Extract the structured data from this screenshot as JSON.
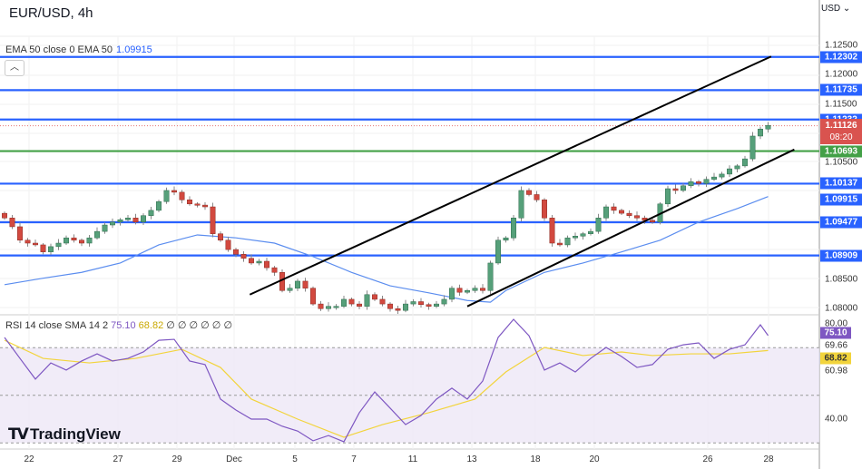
{
  "header": {
    "title": "EUR/USD, 4h",
    "currency": "USD",
    "collapse_icon": "chevron-up-icon"
  },
  "ema_legend": {
    "label": "EMA 50 close 0 EMA 50",
    "value": "1.09915"
  },
  "rsi_legend": {
    "label": "RSI 14 close SMA 14 2",
    "rsi": "75.10",
    "sma": "68.82",
    "extra": "∅ ∅ ∅ ∅ ∅ ∅"
  },
  "logo": "TradingView",
  "colors": {
    "up": "#56a07a",
    "down": "#d2493f",
    "level": "#2962ff",
    "support_green": "#43a047",
    "ema": "#5b8def",
    "rsi": "#7e57c2",
    "rsi_sma": "#f2d43c",
    "price_tag": "#d9534f"
  },
  "price_axis": [
    "1.12500",
    "1.12000",
    "1.11500",
    "1.10500",
    "1.08500",
    "1.08000"
  ],
  "levels": [
    {
      "price": 1.12302,
      "label": "1.12302",
      "color": "#2962ff"
    },
    {
      "price": 1.11735,
      "label": "1.11735",
      "color": "#2962ff"
    },
    {
      "price": 1.11232,
      "label": "1.11232",
      "color": "#2962ff"
    },
    {
      "price": 1.10693,
      "label": "1.10693",
      "color": "#43a047"
    },
    {
      "price": 1.10137,
      "label": "1.10137",
      "color": "#2962ff"
    },
    {
      "price": 1.09477,
      "label": "1.09477",
      "color": "#2962ff"
    },
    {
      "price": 1.08909,
      "label": "1.08909",
      "color": "#2962ff"
    }
  ],
  "current_price": {
    "label": "1.11126",
    "countdown": "08:20"
  },
  "ema_tag": "1.09915",
  "rsi_axis": [
    "80.00",
    "40.00"
  ],
  "rsi_tags": {
    "rsi": "75.10",
    "upper": "69.66",
    "sma": "68.82",
    "lower": "60.98"
  },
  "date_axis": [
    "22",
    "27",
    "29",
    "Dec",
    "5",
    "7",
    "11",
    "13",
    "18",
    "20",
    "26",
    "28"
  ],
  "chart_data": {
    "type": "candlestick",
    "closes": [
      1.0955,
      1.094,
      1.0917,
      1.0912,
      1.0909,
      1.0897,
      1.0906,
      1.0912,
      1.0921,
      1.0917,
      1.0912,
      1.0921,
      1.0932,
      1.0943,
      1.0948,
      1.0952,
      1.0955,
      1.0948,
      1.0959,
      1.0968,
      1.0983,
      1.1002,
      1.0999,
      1.0986,
      1.0979,
      1.0977,
      1.0974,
      1.0928,
      1.0917,
      1.0901,
      1.0893,
      1.0886,
      1.0878,
      1.0881,
      1.087,
      1.0862,
      1.0831,
      1.0835,
      1.0847,
      1.0835,
      1.0808,
      1.08,
      1.0804,
      1.0804,
      1.0816,
      1.0808,
      1.0804,
      1.0824,
      1.0816,
      1.0808,
      1.08,
      1.0797,
      1.0808,
      1.0812,
      1.0807,
      1.0804,
      1.0808,
      1.0816,
      1.0835,
      1.0828,
      1.0831,
      1.0835,
      1.0831,
      1.0878,
      1.0917,
      1.0921,
      1.0955,
      1.1002,
      1.0995,
      1.0986,
      1.0955,
      1.0912,
      1.0909,
      1.0921,
      1.0924,
      1.0928,
      1.0932,
      1.0955,
      1.0974,
      1.0968,
      1.0963,
      1.0959,
      1.0955,
      1.0951,
      1.0948,
      1.0979,
      1.1005,
      1.1002,
      1.101,
      1.1017,
      1.1014,
      1.1021,
      1.1025,
      1.103,
      1.1039,
      1.1044,
      1.1056,
      1.1095,
      1.1107,
      1.1113
    ],
    "ema50": [
      [
        0,
        1.0841
      ],
      [
        5,
        1.0852
      ],
      [
        10,
        1.0862
      ],
      [
        15,
        1.0878
      ],
      [
        20,
        1.0909
      ],
      [
        25,
        1.0926
      ],
      [
        30,
        1.0921
      ],
      [
        35,
        1.0912
      ],
      [
        40,
        1.0889
      ],
      [
        45,
        1.0862
      ],
      [
        50,
        1.0839
      ],
      [
        55,
        1.0827
      ],
      [
        60,
        1.0814
      ],
      [
        63,
        1.0811
      ],
      [
        65,
        1.0831
      ],
      [
        70,
        1.0862
      ],
      [
        75,
        1.0878
      ],
      [
        80,
        1.0897
      ],
      [
        85,
        1.0917
      ],
      [
        90,
        1.0948
      ],
      [
        95,
        1.0971
      ],
      [
        99,
        1.09915
      ]
    ],
    "rsi": [
      74.3,
      65.5,
      56.8,
      63.6,
      60.6,
      64.4,
      67.4,
      64.4,
      65.5,
      68.2,
      73.1,
      73.5,
      64.4,
      62.9,
      48.4,
      43.8,
      40.0,
      40.0,
      37.0,
      35.0,
      30.9,
      33.1,
      30.5,
      42.7,
      51.4,
      44.6,
      37.7,
      41.5,
      48.4,
      53.0,
      48.4,
      56.0,
      74.3,
      81.9,
      75.0,
      60.6,
      63.6,
      59.8,
      65.5,
      70.1,
      66.3,
      61.7,
      62.9,
      69.3,
      71.2,
      72.0,
      65.5,
      69.3,
      71.2,
      79.6,
      75.1
    ],
    "rsi_sma": [
      [
        0,
        73.1
      ],
      [
        5,
        65.5
      ],
      [
        11,
        63.6
      ],
      [
        17,
        65.5
      ],
      [
        23,
        69.3
      ],
      [
        28,
        61.7
      ],
      [
        32,
        48.4
      ],
      [
        38,
        40.0
      ],
      [
        44,
        32.4
      ],
      [
        49,
        37.7
      ],
      [
        55,
        42.7
      ],
      [
        61,
        48.4
      ],
      [
        65,
        59.8
      ],
      [
        70,
        70.1
      ],
      [
        75,
        66.7
      ],
      [
        80,
        68.2
      ],
      [
        84,
        66.7
      ],
      [
        89,
        67.4
      ],
      [
        94,
        67.4
      ],
      [
        99,
        68.82
      ]
    ],
    "rsi_bands": [
      70,
      30
    ],
    "trendlines": [
      {
        "from": [
          31.8,
          1.0824
        ],
        "to": [
          99.4,
          1.1231
        ]
      },
      {
        "from": [
          60.0,
          1.0804
        ],
        "to": [
          102.4,
          1.1072
        ]
      }
    ],
    "y_range": [
      1.079,
      1.128
    ]
  }
}
